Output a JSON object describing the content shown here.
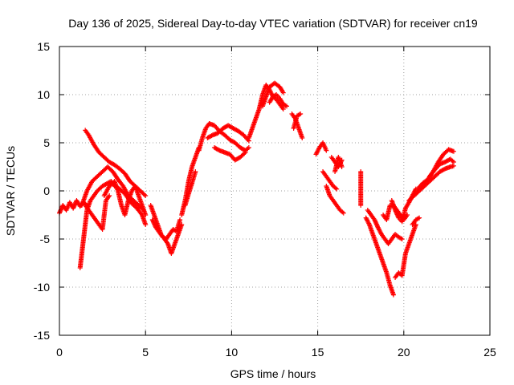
{
  "chart_data": {
    "type": "scatter",
    "title": "Day 136 of 2025, Sidereal Day-to-day VTEC variation (SDTVAR) for receiver cn19",
    "xlabel": "GPS time / hours",
    "ylabel": "SDTVAR / TECUs",
    "xlim": [
      0,
      25
    ],
    "ylim": [
      -15,
      15
    ],
    "xticks": [
      "0",
      "5",
      "10",
      "15",
      "20",
      "25"
    ],
    "yticks": [
      "15",
      "10",
      "5",
      "0",
      "-5",
      "-10",
      "-15"
    ],
    "grid": true,
    "marker": "+",
    "color": "#ff0000",
    "series": [
      {
        "name": "s1",
        "x": [
          0.0,
          0.2,
          0.4,
          0.6,
          0.8,
          1.0,
          1.2,
          1.4,
          1.6
        ],
        "y": [
          -2.3,
          -1.5,
          -2.0,
          -1.2,
          -1.8,
          -1.0,
          -1.6,
          -1.2,
          -1.5
        ]
      },
      {
        "name": "s2",
        "x": [
          1.2,
          1.3,
          1.4,
          1.5,
          1.6,
          1.8,
          2.0,
          2.2,
          2.5,
          2.8,
          3.0,
          3.2,
          3.5,
          3.8,
          4.0,
          4.2,
          4.5,
          4.8,
          5.0
        ],
        "y": [
          -8.0,
          -6.5,
          -5.0,
          -3.5,
          -2.0,
          -1.0,
          -0.5,
          0.0,
          0.5,
          0.8,
          1.0,
          0.5,
          0.2,
          -0.3,
          -0.8,
          -1.3,
          -1.8,
          -2.5,
          -3.5
        ]
      },
      {
        "name": "s3",
        "x": [
          1.3,
          1.6,
          1.9,
          2.2,
          2.5,
          2.8,
          3.1,
          3.4,
          3.7,
          4.0,
          4.3,
          4.6,
          4.9
        ],
        "y": [
          -1.5,
          0.0,
          1.0,
          1.5,
          2.0,
          2.5,
          2.0,
          1.2,
          0.5,
          -0.5,
          -1.0,
          -1.5,
          -2.0
        ]
      },
      {
        "name": "s4",
        "x": [
          1.5,
          1.7,
          2.0,
          2.3,
          2.6,
          2.9,
          3.2,
          3.5,
          3.8,
          4.1,
          4.4,
          4.7,
          5.0
        ],
        "y": [
          6.3,
          5.8,
          4.8,
          4.0,
          3.5,
          3.0,
          2.7,
          2.3,
          1.8,
          1.0,
          0.5,
          0.0,
          -0.5
        ]
      },
      {
        "name": "s5",
        "x": [
          1.5,
          1.7,
          1.9,
          2.1,
          2.3,
          2.5,
          2.7,
          2.9
        ],
        "y": [
          -1.5,
          -2.0,
          -2.5,
          -3.0,
          -3.5,
          -4.0,
          -1.0,
          -0.5
        ]
      },
      {
        "name": "s6",
        "x": [
          2.6,
          2.9,
          3.2,
          3.4,
          3.6,
          3.8,
          4.0,
          4.2,
          4.4,
          4.6,
          4.8,
          5.0
        ],
        "y": [
          -0.5,
          0.5,
          1.0,
          0.0,
          -1.5,
          -2.5,
          -1.0,
          0.0,
          0.5,
          -0.5,
          -1.5,
          -2.5
        ]
      },
      {
        "name": "s7",
        "x": [
          5.3,
          5.5,
          5.7,
          5.9,
          6.1,
          6.3,
          6.5,
          6.7,
          6.9,
          7.1
        ],
        "y": [
          -1.5,
          -2.5,
          -3.5,
          -4.5,
          -5.0,
          -5.5,
          -6.5,
          -5.5,
          -4.5,
          -3.5
        ]
      },
      {
        "name": "s8",
        "x": [
          5.4,
          5.6,
          5.8,
          6.0,
          6.2,
          6.4,
          6.6,
          6.8,
          7.0
        ],
        "y": [
          -3.0,
          -3.8,
          -4.3,
          -4.8,
          -5.0,
          -4.5,
          -4.0,
          -4.2,
          -3.0
        ]
      },
      {
        "name": "s9",
        "x": [
          7.1,
          7.3,
          7.5,
          7.7,
          7.9,
          8.1
        ],
        "y": [
          -2.5,
          -1.0,
          1.0,
          2.5,
          3.5,
          4.5
        ]
      },
      {
        "name": "s10",
        "x": [
          7.3,
          7.5,
          7.7,
          7.9
        ],
        "y": [
          -1.5,
          -0.3,
          0.8,
          2.0
        ]
      },
      {
        "name": "s11",
        "x": [
          8.1,
          8.3,
          8.5,
          8.7,
          9.0,
          9.3,
          9.6,
          9.9,
          10.2,
          10.5,
          10.8,
          11.0
        ],
        "y": [
          4.2,
          5.5,
          6.5,
          7.0,
          6.8,
          6.2,
          5.8,
          5.3,
          5.0,
          4.5,
          4.2,
          4.5
        ]
      },
      {
        "name": "s12",
        "x": [
          8.6,
          8.9,
          9.2,
          9.5,
          9.8,
          10.1,
          10.4,
          10.7,
          11.0
        ],
        "y": [
          5.5,
          5.8,
          6.0,
          6.5,
          6.8,
          6.5,
          6.2,
          5.8,
          5.2
        ]
      },
      {
        "name": "s13",
        "x": [
          9.0,
          9.3,
          9.6,
          9.9,
          10.2,
          10.5,
          10.8
        ],
        "y": [
          4.5,
          4.2,
          4.0,
          3.8,
          3.2,
          3.5,
          4.0
        ]
      },
      {
        "name": "s14",
        "x": [
          11.0,
          11.2,
          11.4,
          11.6,
          11.8,
          12.0,
          12.2,
          12.4,
          12.6,
          12.8,
          13.0
        ],
        "y": [
          5.5,
          6.5,
          7.5,
          8.5,
          10.0,
          11.0,
          10.5,
          9.8,
          9.5,
          9.0,
          8.5
        ]
      },
      {
        "name": "s15",
        "x": [
          11.8,
          12.0,
          12.2,
          12.5,
          12.8,
          13.0
        ],
        "y": [
          8.8,
          9.8,
          10.8,
          11.2,
          10.8,
          10.2
        ]
      },
      {
        "name": "s16",
        "x": [
          12.2,
          12.4,
          12.6,
          12.8,
          13.0,
          13.2
        ],
        "y": [
          9.2,
          9.8,
          10.0,
          9.6,
          9.0,
          8.8
        ]
      },
      {
        "name": "s17",
        "x": [
          13.5,
          13.7,
          13.9,
          14.1
        ],
        "y": [
          8.0,
          7.5,
          6.5,
          5.5
        ]
      },
      {
        "name": "s18",
        "x": [
          13.6,
          13.8,
          14.0
        ],
        "y": [
          6.5,
          7.8,
          8.0
        ]
      },
      {
        "name": "s19",
        "x": [
          14.9,
          15.1,
          15.3,
          15.5
        ],
        "y": [
          3.8,
          4.5,
          5.0,
          4.2
        ]
      },
      {
        "name": "s20",
        "x": [
          15.5,
          15.7,
          15.9,
          16.1,
          16.3,
          16.5
        ],
        "y": [
          0.5,
          -0.5,
          -1.0,
          -1.5,
          -2.0,
          -2.3
        ]
      },
      {
        "name": "s21",
        "x": [
          15.8,
          16.0,
          16.2,
          16.4
        ],
        "y": [
          3.5,
          3.0,
          2.5,
          3.2
        ]
      },
      {
        "name": "s22",
        "x": [
          15.3,
          15.5,
          15.7,
          15.9,
          16.1
        ],
        "y": [
          2.0,
          1.5,
          1.0,
          0.5,
          0.2
        ]
      },
      {
        "name": "s23",
        "x": [
          16.0,
          16.2,
          16.4
        ],
        "y": [
          2.0,
          3.5,
          2.5
        ]
      },
      {
        "name": "s24",
        "x": [
          17.5,
          17.5,
          17.5,
          17.5
        ],
        "y": [
          2.0,
          0.5,
          -0.5,
          -1.5
        ]
      },
      {
        "name": "s25",
        "x": [
          17.8,
          18.0,
          18.2,
          18.4,
          18.6,
          18.8,
          19.0,
          19.2,
          19.4
        ],
        "y": [
          -2.8,
          -3.5,
          -4.5,
          -5.5,
          -6.5,
          -7.5,
          -8.5,
          -9.8,
          -10.8
        ]
      },
      {
        "name": "s26",
        "x": [
          17.9,
          18.1,
          18.3,
          18.5,
          18.7,
          18.9,
          19.1,
          19.3,
          19.5,
          19.7,
          19.9
        ],
        "y": [
          -2.0,
          -2.5,
          -3.0,
          -3.8,
          -4.5,
          -5.0,
          -5.5,
          -5.0,
          -4.5,
          -4.8,
          -5.0
        ]
      },
      {
        "name": "s27",
        "x": [
          18.8,
          19.0,
          19.2,
          19.4,
          19.6,
          19.8,
          20.0,
          20.2
        ],
        "y": [
          -2.5,
          -3.0,
          -1.5,
          -1.5,
          -2.0,
          -2.5,
          -3.0,
          -2.5
        ]
      },
      {
        "name": "s28",
        "x": [
          19.5,
          19.7,
          19.9,
          20.1,
          20.3,
          20.5,
          20.7
        ],
        "y": [
          -9.0,
          -8.5,
          -8.8,
          -6.5,
          -5.5,
          -4.5,
          -3.5
        ]
      },
      {
        "name": "s29",
        "x": [
          19.3,
          19.5,
          19.7,
          19.9,
          20.1,
          20.3,
          20.5,
          20.7
        ],
        "y": [
          -1.0,
          -2.0,
          -2.8,
          -3.2,
          -1.8,
          -1.2,
          -0.5,
          0.2
        ]
      },
      {
        "name": "s30",
        "x": [
          20.3,
          20.6,
          20.9,
          21.2,
          21.5,
          21.8,
          22.1,
          22.4,
          22.7,
          22.9
        ],
        "y": [
          -1.0,
          -0.5,
          0.0,
          0.5,
          1.0,
          1.5,
          2.0,
          2.3,
          2.5,
          2.6
        ]
      },
      {
        "name": "s31",
        "x": [
          20.8,
          21.1,
          21.4,
          21.7,
          22.0,
          22.3,
          22.6,
          22.9
        ],
        "y": [
          0.2,
          0.8,
          1.2,
          2.0,
          3.0,
          3.8,
          4.3,
          4.1
        ]
      },
      {
        "name": "s32",
        "x": [
          21.5,
          21.8,
          22.1,
          22.4,
          22.7,
          22.9
        ],
        "y": [
          1.5,
          2.2,
          2.8,
          3.0,
          3.3,
          3.0
        ]
      },
      {
        "name": "s33",
        "x": [
          20.5,
          20.7,
          20.9
        ],
        "y": [
          -3.5,
          -3.0,
          -2.8
        ]
      }
    ]
  }
}
